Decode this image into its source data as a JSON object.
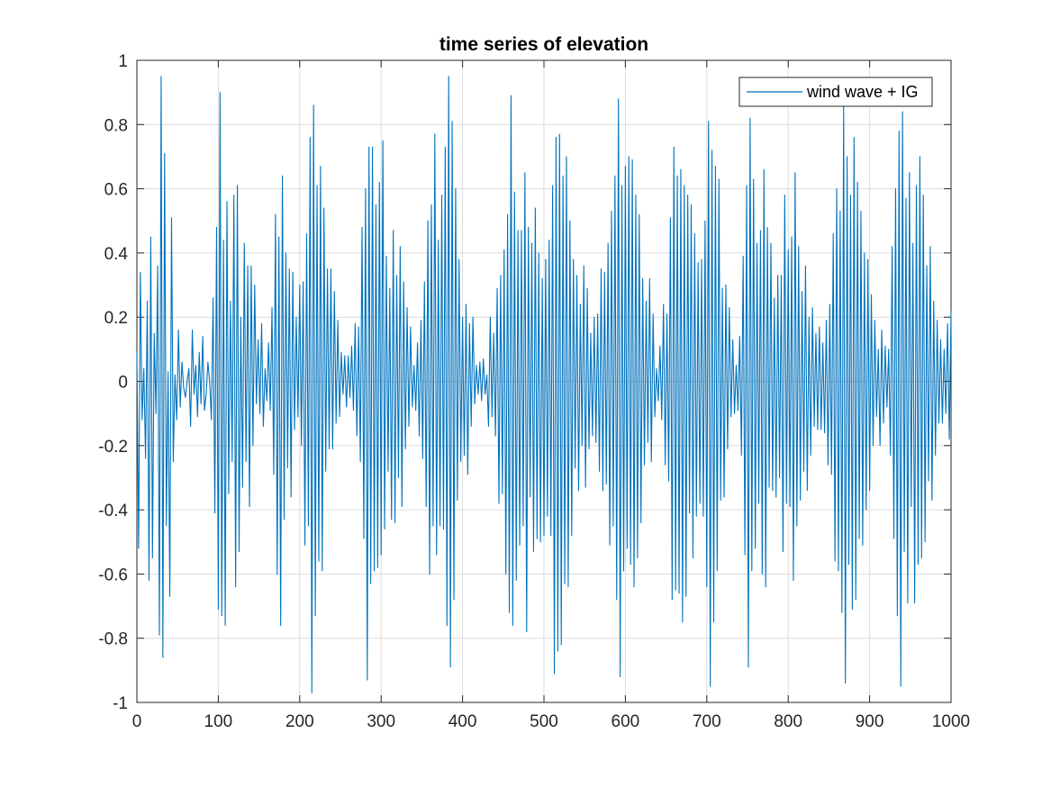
{
  "chart_data": {
    "type": "line",
    "title": "time series of elevation",
    "xlabel": "",
    "ylabel": "",
    "xlim": [
      0,
      1000
    ],
    "ylim": [
      -1,
      1
    ],
    "xticks": [
      0,
      100,
      200,
      300,
      400,
      500,
      600,
      700,
      800,
      900,
      1000
    ],
    "yticks": [
      -1,
      -0.8,
      -0.6,
      -0.4,
      -0.2,
      0,
      0.2,
      0.4,
      0.6,
      0.8,
      1
    ],
    "xtick_labels": [
      "0",
      "100",
      "200",
      "300",
      "400",
      "500",
      "600",
      "700",
      "800",
      "900",
      "1000"
    ],
    "ytick_labels": [
      "-1",
      "-0.8",
      "-0.6",
      "-0.4",
      "-0.2",
      "0",
      "0.2",
      "0.4",
      "0.6",
      "0.8",
      "1"
    ],
    "grid": true,
    "legend_position": "top-right",
    "series": [
      {
        "name": "wind wave + IG",
        "color": "#0072BD",
        "x_start": 0,
        "x_step": 1,
        "values": [
          0.09,
          -0.52,
          0.34,
          -0.12,
          0.04,
          -0.24,
          0.25,
          -0.62,
          0.45,
          -0.55,
          0.15,
          -0.1,
          0.36,
          -0.79,
          0.95,
          -0.86,
          0.71,
          -0.45,
          0.03,
          -0.67,
          0.51,
          -0.25,
          0.02,
          -0.12,
          0.16,
          -0.08,
          0.06,
          -0.02,
          -0.05,
          0.0,
          0.04,
          -0.14,
          0.16,
          -0.04,
          0.05,
          -0.11,
          0.09,
          -0.07,
          0.14,
          -0.09,
          -0.04,
          0.06,
          0.0,
          -0.12,
          0.26,
          -0.41,
          0.48,
          -0.71,
          0.9,
          -0.73,
          0.44,
          -0.76,
          0.56,
          -0.35,
          0.25,
          -0.25,
          0.58,
          -0.64,
          0.61,
          -0.53,
          0.2,
          -0.33,
          0.43,
          -0.25,
          0.36,
          -0.39,
          0.36,
          -0.2,
          0.3,
          -0.07,
          0.13,
          -0.1,
          0.18,
          -0.14,
          0.04,
          -0.06,
          0.12,
          -0.09,
          0.23,
          -0.29,
          0.52,
          -0.6,
          0.45,
          -0.76,
          0.64,
          -0.43,
          0.4,
          -0.27,
          0.35,
          -0.36,
          0.34,
          -0.15,
          0.2,
          -0.11,
          0.3,
          -0.2,
          0.31,
          -0.51,
          0.46,
          -0.45,
          0.76,
          -0.97,
          0.86,
          -0.73,
          0.61,
          -0.56,
          0.67,
          -0.59,
          0.54,
          -0.28,
          0.35,
          -0.21,
          0.35,
          -0.21,
          0.28,
          -0.13,
          0.19,
          -0.11,
          0.09,
          -0.04,
          0.08,
          -0.08,
          0.08,
          -0.05,
          0.11,
          -0.09,
          0.18,
          -0.17,
          0.17,
          -0.25,
          0.48,
          -0.49,
          0.6,
          -0.93,
          0.73,
          -0.63,
          0.73,
          -0.59,
          0.55,
          -0.58,
          0.62,
          -0.54,
          0.75,
          -0.46,
          0.39,
          -0.28,
          0.29,
          -0.43,
          0.47,
          -0.44,
          0.33,
          -0.3,
          0.42,
          -0.39,
          0.31,
          -0.21,
          0.23,
          -0.14,
          0.17,
          -0.08,
          0.05,
          -0.09,
          0.12,
          -0.17,
          0.19,
          -0.24,
          0.31,
          -0.39,
          0.5,
          -0.6,
          0.55,
          -0.45,
          0.77,
          -0.54,
          0.44,
          -0.45,
          0.58,
          -0.46,
          0.73,
          -0.76,
          0.95,
          -0.89,
          0.81,
          -0.68,
          0.6,
          -0.37,
          0.38,
          -0.25,
          0.2,
          -0.23,
          0.24,
          -0.29,
          0.18,
          -0.14,
          0.2,
          -0.07,
          0.05,
          -0.04,
          0.06,
          -0.06,
          0.07,
          -0.04,
          0.02,
          -0.14,
          0.2,
          -0.11,
          0.15,
          -0.17,
          0.29,
          -0.38,
          0.33,
          -0.35,
          0.41,
          -0.6,
          0.52,
          -0.72,
          0.89,
          -0.76,
          0.59,
          -0.62,
          0.47,
          -0.51,
          0.47,
          -0.45,
          0.65,
          -0.78,
          0.48,
          -0.36,
          0.43,
          -0.53,
          0.54,
          -0.49,
          0.4,
          -0.5,
          0.32,
          -0.48,
          0.38,
          -0.42,
          0.44,
          -0.48,
          0.61,
          -0.91,
          0.76,
          -0.84,
          0.77,
          -0.82,
          0.64,
          -0.63,
          0.7,
          -0.64,
          0.5,
          -0.48,
          0.38,
          -0.27,
          0.33,
          -0.34,
          0.24,
          -0.2,
          0.36,
          -0.33,
          0.29,
          -0.21,
          0.15,
          -0.17,
          0.2,
          -0.19,
          0.21,
          -0.28,
          0.35,
          -0.34,
          0.34,
          -0.32,
          0.43,
          -0.51,
          0.53,
          -0.45,
          0.64,
          -0.68,
          0.88,
          -0.92,
          0.61,
          -0.59,
          0.67,
          -0.52,
          0.7,
          -0.57,
          0.69,
          -0.64,
          0.58,
          -0.55,
          0.52,
          -0.44,
          0.32,
          -0.26,
          0.25,
          -0.19,
          0.32,
          -0.25,
          0.21,
          -0.11,
          0.04,
          -0.06,
          0.11,
          -0.12,
          0.24,
          -0.26,
          0.21,
          -0.31,
          0.51,
          -0.68,
          0.73,
          -0.65,
          0.64,
          -0.66,
          0.66,
          -0.75,
          0.61,
          -0.67,
          0.58,
          -0.41,
          0.55,
          -0.55,
          0.46,
          -0.42,
          0.37,
          -0.38,
          0.38,
          -0.42,
          0.5,
          -0.64,
          0.81,
          -0.95,
          0.72,
          -0.75,
          0.67,
          -0.59,
          0.63,
          -0.37,
          0.29,
          -0.36,
          0.3,
          -0.21,
          0.23,
          -0.11,
          0.13,
          -0.1,
          0.05,
          -0.09,
          0.14,
          -0.23,
          0.39,
          -0.54,
          0.61,
          -0.89,
          0.82,
          -0.59,
          0.63,
          -0.52,
          0.43,
          -0.38,
          0.47,
          -0.6,
          0.66,
          -0.64,
          0.48,
          -0.33,
          0.43,
          -0.34,
          0.26,
          -0.36,
          0.33,
          -0.3,
          0.33,
          -0.53,
          0.58,
          -0.38,
          0.41,
          -0.39,
          0.45,
          -0.62,
          0.65,
          -0.45,
          0.42,
          -0.37,
          0.28,
          -0.28,
          0.36,
          -0.34,
          0.2,
          -0.23,
          0.23,
          -0.14,
          0.15,
          -0.15,
          0.17,
          -0.15,
          0.12,
          -0.16,
          0.19,
          -0.26,
          0.24,
          -0.29,
          0.46,
          -0.56,
          0.6,
          -0.59,
          0.53,
          -0.72,
          0.86,
          -0.94,
          0.7,
          -0.57,
          0.58,
          -0.71,
          0.76,
          -0.68,
          0.62,
          -0.49,
          0.53,
          -0.51,
          0.4,
          -0.4,
          0.38,
          -0.34,
          0.27,
          -0.2,
          0.19,
          -0.11,
          0.1,
          -0.2,
          0.16,
          -0.13,
          0.11,
          -0.08,
          0.1,
          -0.23,
          0.42,
          -0.49,
          0.6,
          -0.73,
          0.78,
          -0.95,
          0.84,
          -0.53,
          0.57,
          -0.69,
          0.65,
          -0.39,
          0.43,
          -0.69,
          0.61,
          -0.57,
          0.7,
          -0.55,
          0.58,
          -0.5,
          0.36,
          -0.31,
          0.42,
          -0.37,
          0.25,
          -0.23,
          0.19,
          -0.13,
          0.13,
          -0.13,
          0.1,
          -0.1,
          0.18,
          -0.18,
          0.22
        ]
      }
    ]
  }
}
